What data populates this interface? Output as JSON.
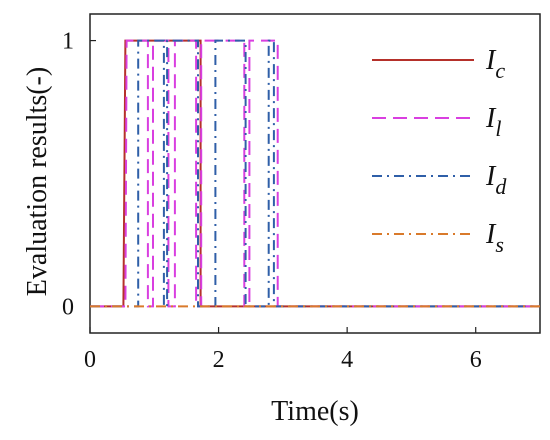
{
  "chart_data": {
    "type": "line",
    "xlabel": "Time(s)",
    "ylabel": "Evaluation results(-)",
    "xlim": [
      0,
      7
    ],
    "ylim": [
      -0.1,
      1.1
    ],
    "xticks": [
      0,
      2,
      4,
      6
    ],
    "yticks": [
      0,
      1
    ],
    "grid": false,
    "legend_position": "top-right",
    "series": [
      {
        "name": "I",
        "subscript": "c",
        "color": "#b5302a",
        "dash": "solid",
        "points": [
          [
            0,
            0
          ],
          [
            0.52,
            0
          ],
          [
            0.55,
            1
          ],
          [
            1.72,
            1
          ],
          [
            1.72,
            0
          ],
          [
            7,
            0
          ]
        ]
      },
      {
        "name": "I",
        "subscript": "l",
        "color": "#d93fe0",
        "dash": "dashed",
        "points": [
          [
            0,
            0
          ],
          [
            0.55,
            0
          ],
          [
            0.57,
            1
          ],
          [
            0.9,
            1
          ],
          [
            0.9,
            0
          ],
          [
            0.98,
            0
          ],
          [
            0.98,
            1
          ],
          [
            1.22,
            1
          ],
          [
            1.22,
            0
          ],
          [
            1.32,
            0
          ],
          [
            1.32,
            1
          ],
          [
            1.65,
            1
          ],
          [
            1.65,
            0
          ],
          [
            1.73,
            0
          ],
          [
            1.73,
            1
          ],
          [
            2.4,
            1
          ],
          [
            2.4,
            0
          ],
          [
            2.48,
            0
          ],
          [
            2.48,
            1
          ],
          [
            2.92,
            1
          ],
          [
            2.92,
            0
          ],
          [
            7,
            0
          ]
        ]
      },
      {
        "name": "I",
        "subscript": "d",
        "color": "#2f5fa8",
        "dash": "dashdot",
        "points": [
          [
            0,
            0
          ],
          [
            0.75,
            0
          ],
          [
            0.75,
            1
          ],
          [
            1.15,
            1
          ],
          [
            1.15,
            0
          ],
          [
            1.2,
            0
          ],
          [
            1.2,
            1
          ],
          [
            1.68,
            1
          ],
          [
            1.68,
            0
          ],
          [
            1.95,
            0
          ],
          [
            1.95,
            1
          ],
          [
            2.42,
            1
          ],
          [
            2.42,
            0
          ],
          [
            2.78,
            0
          ],
          [
            2.78,
            1
          ],
          [
            2.86,
            1
          ],
          [
            2.86,
            0
          ],
          [
            7,
            0
          ]
        ]
      },
      {
        "name": "I",
        "subscript": "s",
        "color": "#d97a2b",
        "dash": "dashdot",
        "points": [
          [
            0,
            0
          ],
          [
            7,
            0
          ]
        ]
      }
    ]
  }
}
